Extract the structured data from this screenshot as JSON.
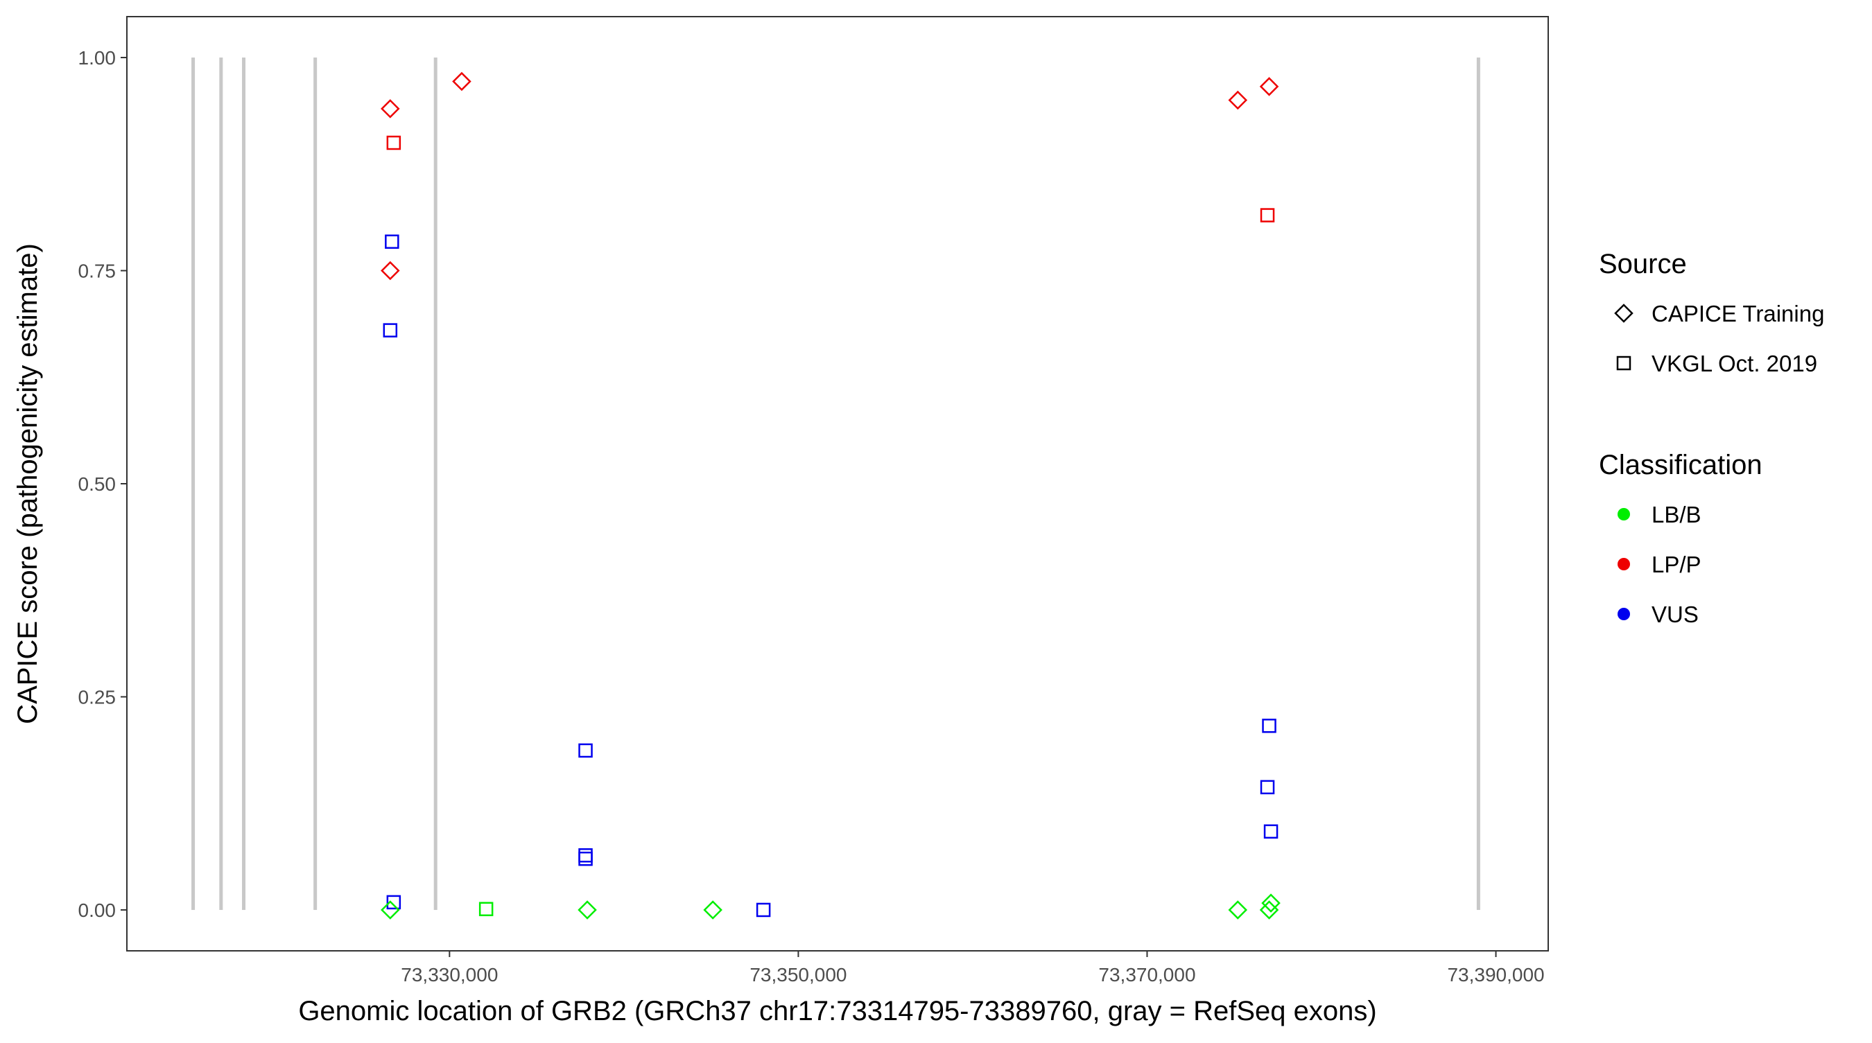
{
  "chart_data": {
    "type": "scatter",
    "xlabel": "Genomic location of GRB2 (GRCh37 chr17:73314795-73389760, gray = RefSeq exons)",
    "ylabel": "CAPICE score (pathogenicity estimate)",
    "xlim": [
      73311500,
      73393000
    ],
    "ylim": [
      -0.048,
      1.048
    ],
    "x_ticks": [
      73330000,
      73350000,
      73370000,
      73390000
    ],
    "x_tick_labels": [
      "73,330,000",
      "73,350,000",
      "73,370,000",
      "73,390,000"
    ],
    "y_ticks": [
      0.0,
      0.25,
      0.5,
      0.75,
      1.0
    ],
    "y_tick_labels": [
      "0.00",
      "0.25",
      "0.50",
      "0.75",
      "1.00"
    ],
    "grid": false,
    "exon_color": "#c8c8c8",
    "exons": [
      73315300,
      73316900,
      73318200,
      73322300,
      73329200,
      73389000
    ],
    "colors": {
      "LB/B": "#00ee00",
      "LP/P": "#ee0000",
      "VUS": "#0000ee"
    },
    "legend_position": "right",
    "legends": [
      {
        "title": "Source",
        "entries": [
          {
            "label": "CAPICE Training",
            "shape": "diamond"
          },
          {
            "label": "VKGL Oct. 2019",
            "shape": "square"
          }
        ]
      },
      {
        "title": "Classification",
        "entries": [
          {
            "label": "LB/B",
            "shape": "circle"
          },
          {
            "label": "LP/P",
            "shape": "circle"
          },
          {
            "label": "VUS",
            "shape": "circle"
          }
        ]
      }
    ],
    "points": [
      {
        "x": 73326600,
        "y": 0.94,
        "source": "CAPICE Training",
        "class": "LP/P"
      },
      {
        "x": 73330700,
        "y": 0.972,
        "source": "CAPICE Training",
        "class": "LP/P"
      },
      {
        "x": 73326600,
        "y": 0.75,
        "source": "CAPICE Training",
        "class": "LP/P"
      },
      {
        "x": 73375200,
        "y": 0.95,
        "source": "CAPICE Training",
        "class": "LP/P"
      },
      {
        "x": 73377000,
        "y": 0.966,
        "source": "CAPICE Training",
        "class": "LP/P"
      },
      {
        "x": 73326800,
        "y": 0.9,
        "source": "VKGL Oct. 2019",
        "class": "LP/P"
      },
      {
        "x": 73376900,
        "y": 0.815,
        "source": "VKGL Oct. 2019",
        "class": "LP/P"
      },
      {
        "x": 73326700,
        "y": 0.784,
        "source": "VKGL Oct. 2019",
        "class": "VUS"
      },
      {
        "x": 73326600,
        "y": 0.68,
        "source": "VKGL Oct. 2019",
        "class": "VUS"
      },
      {
        "x": 73326800,
        "y": 0.009,
        "source": "VKGL Oct. 2019",
        "class": "VUS"
      },
      {
        "x": 73337800,
        "y": 0.187,
        "source": "VKGL Oct. 2019",
        "class": "VUS"
      },
      {
        "x": 73337800,
        "y": 0.064,
        "source": "VKGL Oct. 2019",
        "class": "VUS"
      },
      {
        "x": 73337800,
        "y": 0.06,
        "source": "VKGL Oct. 2019",
        "class": "VUS"
      },
      {
        "x": 73348000,
        "y": 0.0,
        "source": "VKGL Oct. 2019",
        "class": "VUS"
      },
      {
        "x": 73377000,
        "y": 0.216,
        "source": "VKGL Oct. 2019",
        "class": "VUS"
      },
      {
        "x": 73376900,
        "y": 0.144,
        "source": "VKGL Oct. 2019",
        "class": "VUS"
      },
      {
        "x": 73377100,
        "y": 0.092,
        "source": "VKGL Oct. 2019",
        "class": "VUS"
      },
      {
        "x": 73332100,
        "y": 0.001,
        "source": "VKGL Oct. 2019",
        "class": "LB/B"
      },
      {
        "x": 73326600,
        "y": 0.0,
        "source": "CAPICE Training",
        "class": "LB/B"
      },
      {
        "x": 73337900,
        "y": 0.0,
        "source": "CAPICE Training",
        "class": "LB/B"
      },
      {
        "x": 73345100,
        "y": 0.0,
        "source": "CAPICE Training",
        "class": "LB/B"
      },
      {
        "x": 73375200,
        "y": 0.0,
        "source": "CAPICE Training",
        "class": "LB/B"
      },
      {
        "x": 73377000,
        "y": 0.0,
        "source": "CAPICE Training",
        "class": "LB/B"
      },
      {
        "x": 73377100,
        "y": 0.008,
        "source": "CAPICE Training",
        "class": "LB/B"
      }
    ]
  }
}
